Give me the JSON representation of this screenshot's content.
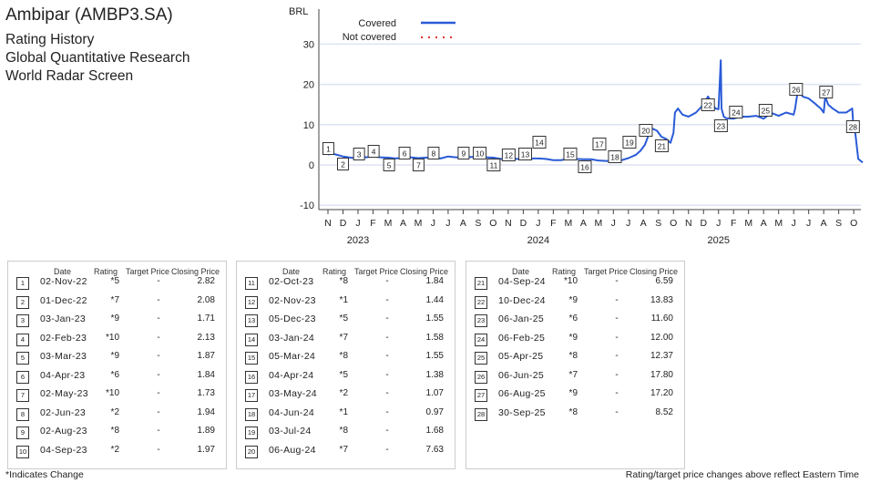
{
  "header": {
    "title": "Ambipar (AMBP3.SA)",
    "lines": [
      "Rating History",
      "Global Quantitative Research",
      "World Radar Screen"
    ]
  },
  "chart_data": {
    "type": "line",
    "ylabel": "BRL",
    "ylim": [
      -10,
      35
    ],
    "yticks": [
      -10,
      0,
      10,
      20,
      30
    ],
    "xticks": [
      "N",
      "D",
      "J",
      "F",
      "M",
      "A",
      "M",
      "J",
      "J",
      "A",
      "S",
      "O",
      "N",
      "D",
      "J",
      "F",
      "M",
      "A",
      "M",
      "J",
      "J",
      "A",
      "S",
      "O",
      "N",
      "D",
      "J",
      "F",
      "M",
      "A",
      "M",
      "J",
      "J",
      "A",
      "S",
      "O"
    ],
    "years": [
      {
        "label": "2023",
        "month_index": 2
      },
      {
        "label": "2024",
        "month_index": 14
      },
      {
        "label": "2025",
        "month_index": 26
      }
    ],
    "legend": [
      {
        "label": "Covered",
        "color": "#2a5bd7",
        "style": "solid"
      },
      {
        "label": "Not covered",
        "color": "#e8322b",
        "style": "dotted"
      }
    ],
    "series": [
      {
        "name": "Covered",
        "x_month_index": [
          0,
          0.3,
          0.6,
          1,
          1.5,
          2,
          2.5,
          3,
          3.5,
          4,
          4.5,
          5,
          5.5,
          6,
          6.5,
          7,
          7.5,
          8,
          8.5,
          9,
          9.5,
          10,
          10.5,
          11,
          11.5,
          12,
          12.5,
          13,
          13.5,
          14,
          14.5,
          15,
          15.5,
          16,
          16.5,
          17,
          17.5,
          18,
          18.5,
          19,
          19.5,
          20,
          20.5,
          20.8,
          21.1,
          21.4,
          21.6,
          21.9,
          22.2,
          22.5,
          22.8,
          23,
          23.1,
          23.3,
          23.6,
          24,
          24.5,
          25,
          25.3,
          25.6,
          25.8,
          26,
          26.15,
          26.2,
          26.35,
          26.5,
          27,
          27.5,
          28,
          28.5,
          29,
          29.3,
          29.6,
          30,
          30.5,
          31,
          31.1,
          31.3,
          31.6,
          32,
          32.5,
          32.8,
          33,
          33.1,
          33.3,
          33.6,
          34,
          34.5,
          34.9,
          35,
          35.1,
          35.3,
          35.6
        ],
        "values": [
          2.6,
          2.8,
          2.5,
          2.1,
          1.8,
          1.7,
          1.9,
          2.1,
          1.9,
          1.8,
          1.6,
          1.8,
          1.9,
          1.7,
          1.8,
          1.9,
          1.6,
          2.1,
          1.9,
          1.9,
          2.0,
          2.0,
          1.9,
          1.8,
          1.5,
          1.4,
          1.5,
          1.5,
          1.6,
          1.6,
          1.5,
          1.2,
          1.2,
          1.5,
          1.5,
          1.4,
          1.4,
          1.1,
          1.0,
          1.0,
          1.1,
          1.7,
          2.5,
          3.5,
          5,
          8,
          9,
          8.5,
          7,
          6.5,
          5.5,
          8,
          13,
          14,
          12.5,
          12,
          13,
          15,
          17,
          15,
          14,
          13.83,
          26,
          14,
          12,
          11.6,
          11.5,
          12,
          12,
          12.2,
          11.5,
          12.3,
          12.8,
          12.2,
          13,
          12.5,
          14,
          19,
          17,
          16.5,
          15,
          14,
          13,
          17,
          15,
          14,
          13,
          13,
          14,
          8.5,
          8,
          1.5,
          0.6,
          0.5
        ]
      }
    ],
    "markers": [
      {
        "n": "1",
        "date": "02-Nov-22",
        "rating": "*5",
        "target": "-",
        "close": "2.82",
        "month_index": 0.03
      },
      {
        "n": "2",
        "date": "01-Dec-22",
        "rating": "*7",
        "target": "-",
        "close": "2.08",
        "month_index": 1.0
      },
      {
        "n": "3",
        "date": "03-Jan-23",
        "rating": "*9",
        "target": "-",
        "close": "1.71",
        "month_index": 2.07
      },
      {
        "n": "4",
        "date": "02-Feb-23",
        "rating": "*10",
        "target": "-",
        "close": "2.13",
        "month_index": 3.04
      },
      {
        "n": "5",
        "date": "03-Mar-23",
        "rating": "*9",
        "target": "-",
        "close": "1.87",
        "month_index": 4.07
      },
      {
        "n": "6",
        "date": "04-Apr-23",
        "rating": "*6",
        "target": "-",
        "close": "1.84",
        "month_index": 5.1
      },
      {
        "n": "7",
        "date": "02-May-23",
        "rating": "*10",
        "target": "-",
        "close": "1.73",
        "month_index": 6.03
      },
      {
        "n": "8",
        "date": "02-Jun-23",
        "rating": "*2",
        "target": "-",
        "close": "1.94",
        "month_index": 7.03
      },
      {
        "n": "9",
        "date": "02-Aug-23",
        "rating": "*8",
        "target": "-",
        "close": "1.89",
        "month_index": 9.03
      },
      {
        "n": "10",
        "date": "04-Sep-23",
        "rating": "*2",
        "target": "-",
        "close": "1.97",
        "month_index": 10.1
      },
      {
        "n": "11",
        "date": "02-Oct-23",
        "rating": "*8",
        "target": "-",
        "close": "1.84",
        "month_index": 11.03
      },
      {
        "n": "12",
        "date": "02-Nov-23",
        "rating": "*1",
        "target": "-",
        "close": "1.44",
        "month_index": 12.03
      },
      {
        "n": "13",
        "date": "05-Dec-23",
        "rating": "*5",
        "target": "-",
        "close": "1.55",
        "month_index": 13.13
      },
      {
        "n": "14",
        "date": "03-Jan-24",
        "rating": "*7",
        "target": "-",
        "close": "1.58",
        "month_index": 14.07
      },
      {
        "n": "15",
        "date": "05-Mar-24",
        "rating": "*8",
        "target": "-",
        "close": "1.55",
        "month_index": 16.13
      },
      {
        "n": "16",
        "date": "04-Apr-24",
        "rating": "*5",
        "target": "-",
        "close": "1.38",
        "month_index": 17.1
      },
      {
        "n": "17",
        "date": "03-May-24",
        "rating": "*2",
        "target": "-",
        "close": "1.07",
        "month_index": 18.07
      },
      {
        "n": "18",
        "date": "04-Jun-24",
        "rating": "*1",
        "target": "-",
        "close": "0.97",
        "month_index": 19.1
      },
      {
        "n": "19",
        "date": "03-Jul-24",
        "rating": "*8",
        "target": "-",
        "close": "1.68",
        "month_index": 20.07
      },
      {
        "n": "20",
        "date": "06-Aug-24",
        "rating": "*7",
        "target": "-",
        "close": "7.63",
        "month_index": 21.16
      },
      {
        "n": "21",
        "date": "04-Sep-24",
        "rating": "*10",
        "target": "-",
        "close": "6.59",
        "month_index": 22.1
      },
      {
        "n": "22",
        "date": "10-Dec-24",
        "rating": "*9",
        "target": "-",
        "close": "13.83",
        "month_index": 25.3
      },
      {
        "n": "23",
        "date": "06-Jan-25",
        "rating": "*6",
        "target": "-",
        "close": "11.60",
        "month_index": 26.16
      },
      {
        "n": "24",
        "date": "06-Feb-25",
        "rating": "*9",
        "target": "-",
        "close": "12.00",
        "month_index": 27.16
      },
      {
        "n": "25",
        "date": "05-Apr-25",
        "rating": "*8",
        "target": "-",
        "close": "12.37",
        "month_index": 29.13
      },
      {
        "n": "26",
        "date": "06-Jun-25",
        "rating": "*7",
        "target": "-",
        "close": "17.80",
        "month_index": 31.16
      },
      {
        "n": "27",
        "date": "06-Aug-25",
        "rating": "*9",
        "target": "-",
        "close": "17.20",
        "month_index": 33.16
      },
      {
        "n": "28",
        "date": "30-Sep-25",
        "rating": "*8",
        "target": "-",
        "close": "8.52",
        "month_index": 34.95
      }
    ]
  },
  "table": {
    "headers": {
      "date": "Date",
      "rating": "Rating",
      "target": "Target Price",
      "close": "Closing Price"
    }
  },
  "footer": {
    "left": "*Indicates Change",
    "right": "Rating/target price changes above reflect Eastern Time"
  }
}
